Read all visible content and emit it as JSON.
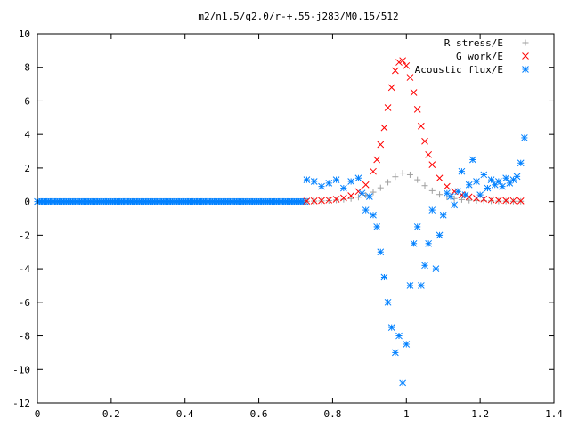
{
  "chart_data": {
    "type": "scatter",
    "title": "m2/n1.5/q2.0/r-+.55-j283/M0.15/512",
    "xlabel": "",
    "ylabel": "",
    "xlim": [
      0,
      1.4
    ],
    "ylim": [
      -12,
      10
    ],
    "x_ticks": [
      "0",
      "0.2",
      "0.4",
      "0.6",
      "0.8",
      "1",
      "1.2",
      "1.4"
    ],
    "y_ticks": [
      "10",
      "8",
      "6",
      "4",
      "2",
      "0",
      "-2",
      "-4",
      "-6",
      "-8",
      "-10",
      "-12"
    ],
    "legend_position": "top-right",
    "series": [
      {
        "name": "R stress/E",
        "marker": "+",
        "color": "#a0a0a0",
        "x": [
          0.73,
          0.75,
          0.77,
          0.79,
          0.81,
          0.83,
          0.85,
          0.87,
          0.89,
          0.91,
          0.93,
          0.95,
          0.97,
          0.99,
          1.01,
          1.03,
          1.05,
          1.07,
          1.09,
          1.11,
          1.13,
          1.15,
          1.17,
          1.19,
          1.21,
          1.23,
          1.25,
          1.27,
          1.29,
          1.31
        ],
        "y": [
          0.02,
          0.03,
          0.04,
          0.06,
          0.09,
          0.13,
          0.18,
          0.26,
          0.38,
          0.56,
          0.82,
          1.15,
          1.48,
          1.7,
          1.6,
          1.3,
          0.95,
          0.65,
          0.42,
          0.27,
          0.18,
          0.12,
          0.08,
          0.06,
          0.05,
          0.04,
          0.03,
          0.03,
          0.02,
          0.02
        ]
      },
      {
        "name": "G work/E",
        "marker": "x",
        "color": "#ff0000",
        "x": [
          0.73,
          0.75,
          0.77,
          0.79,
          0.81,
          0.83,
          0.85,
          0.87,
          0.89,
          0.91,
          0.92,
          0.93,
          0.94,
          0.95,
          0.96,
          0.97,
          0.98,
          0.99,
          1.0,
          1.01,
          1.02,
          1.03,
          1.04,
          1.05,
          1.06,
          1.07,
          1.09,
          1.11,
          1.13,
          1.15,
          1.17,
          1.19,
          1.21,
          1.23,
          1.25,
          1.27,
          1.29,
          1.31
        ],
        "y": [
          0.03,
          0.04,
          0.06,
          0.09,
          0.14,
          0.22,
          0.35,
          0.6,
          1.0,
          1.8,
          2.5,
          3.4,
          4.4,
          5.6,
          6.8,
          7.8,
          8.3,
          8.4,
          8.1,
          7.4,
          6.5,
          5.5,
          4.5,
          3.6,
          2.8,
          2.2,
          1.4,
          0.9,
          0.6,
          0.4,
          0.28,
          0.2,
          0.15,
          0.11,
          0.08,
          0.06,
          0.05,
          0.04
        ]
      },
      {
        "name": "Acoustic flux/E",
        "marker": "*",
        "color": "#0080ff",
        "x": [
          0.73,
          0.75,
          0.77,
          0.79,
          0.81,
          0.83,
          0.85,
          0.87,
          0.88,
          0.89,
          0.9,
          0.91,
          0.92,
          0.93,
          0.94,
          0.95,
          0.96,
          0.97,
          0.98,
          0.99,
          1.0,
          1.01,
          1.02,
          1.03,
          1.04,
          1.05,
          1.06,
          1.07,
          1.08,
          1.09,
          1.1,
          1.11,
          1.12,
          1.13,
          1.14,
          1.15,
          1.16,
          1.17,
          1.18,
          1.19,
          1.2,
          1.21,
          1.22,
          1.23,
          1.24,
          1.25,
          1.26,
          1.27,
          1.28,
          1.29,
          1.3,
          1.31,
          1.32
        ],
        "y": [
          1.3,
          1.2,
          0.9,
          1.1,
          1.3,
          0.8,
          1.2,
          1.4,
          0.5,
          -0.5,
          0.3,
          -0.8,
          -1.5,
          -3.0,
          -4.5,
          -6.0,
          -7.5,
          -9.0,
          -8.0,
          -10.8,
          -8.5,
          -5.0,
          -2.5,
          -1.5,
          -5.0,
          -3.8,
          -2.5,
          -0.5,
          -4.0,
          -2.0,
          -0.8,
          0.5,
          0.3,
          -0.2,
          0.6,
          1.8,
          0.4,
          1.0,
          2.5,
          1.2,
          0.4,
          1.6,
          0.8,
          1.3,
          1.0,
          1.2,
          0.9,
          1.4,
          1.1,
          1.3,
          1.5,
          2.3,
          3.8
        ]
      }
    ]
  }
}
